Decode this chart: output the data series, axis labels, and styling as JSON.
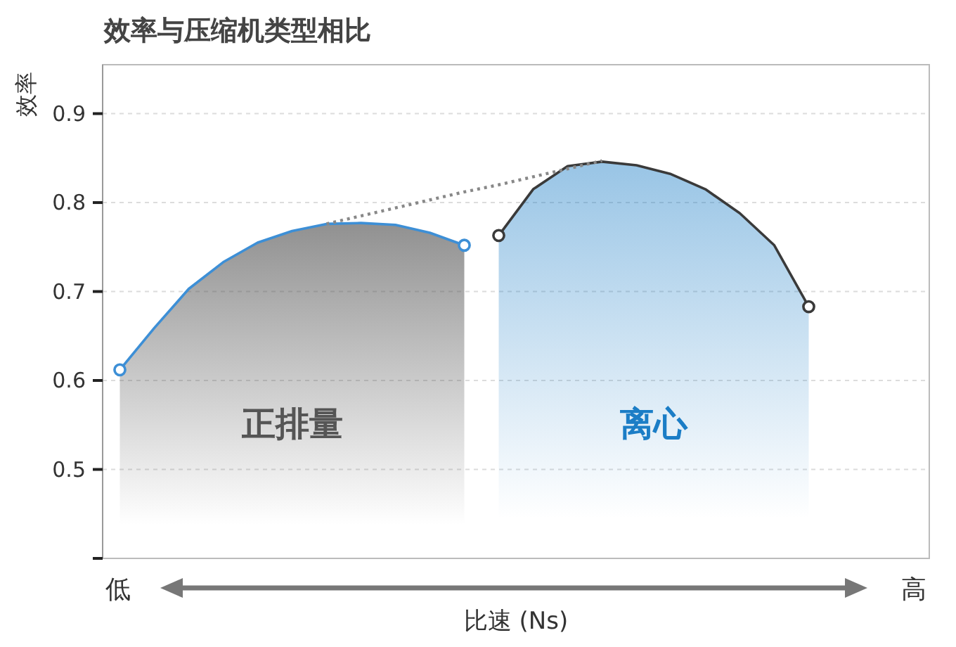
{
  "chart_data": {
    "type": "area",
    "title": "效率与压缩机类型相比",
    "xlabel": "比速 (Ns)",
    "ylabel": "效率",
    "annotations": [
      "低",
      "高"
    ],
    "categories": [
      null,
      null,
      null,
      null,
      null,
      null,
      null,
      null,
      null,
      null,
      null,
      null,
      null,
      null,
      null,
      null,
      null,
      null,
      null,
      null,
      null,
      null,
      null,
      null
    ],
    "ylim": [
      0.4,
      0.955
    ],
    "yticks": [
      {
        "value": 0.4,
        "label": null
      },
      0.5,
      0.6,
      0.7,
      0.8,
      0.9
    ],
    "tick_labels": "y",
    "grid": "y",
    "legend": false,
    "series": [
      {
        "name": "正排量",
        "color": "#555555",
        "values": [
          0.612,
          0.659,
          0.703,
          0.733,
          0.755,
          0.768,
          0.776,
          0.777,
          0.775,
          0.766,
          0.752,
          null,
          null,
          null,
          null,
          null,
          null,
          null,
          null,
          null,
          null,
          null,
          null,
          null
        ]
      },
      {
        "name": "离心",
        "color": "#1b7dc6",
        "values": [
          null,
          null,
          null,
          null,
          null,
          null,
          null,
          null,
          null,
          null,
          null,
          0.763,
          0.815,
          0.841,
          0.846,
          0.842,
          0.832,
          0.815,
          0.788,
          0.752,
          0.683,
          null,
          null,
          null
        ]
      },
      {
        "type": "line",
        "color": "#888888",
        "line_style": "dotted",
        "values": [
          null,
          null,
          null,
          null,
          null,
          null,
          0.776,
          0.785,
          0.794,
          0.803,
          0.812,
          0.82,
          0.829,
          0.838,
          0.847,
          null,
          null,
          null,
          null,
          null,
          null,
          null,
          null,
          null
        ]
      }
    ]
  }
}
